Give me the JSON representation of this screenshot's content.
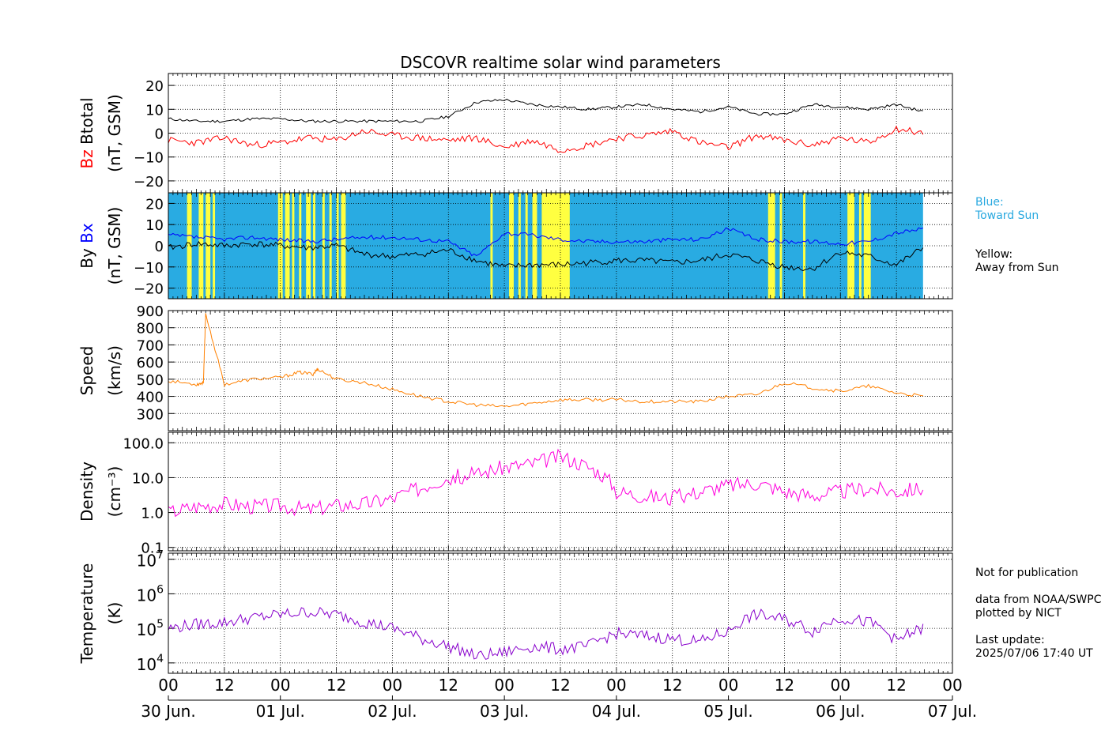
{
  "title": "DSCOVR realtime solar wind parameters",
  "colors": {
    "bz": "#ff0000",
    "btotal": "#000000",
    "bx": "#0000ff",
    "by": "#000000",
    "speed": "#ff8000",
    "density": "#ff00dd",
    "temperature": "#8800cc",
    "toward_sun_bg": "#29abe2",
    "away_sun_bg": "#ffff40"
  },
  "side_notes": {
    "blue_line1": "Blue:",
    "blue_line2": "Toward Sun",
    "yellow_line1": "Yellow:",
    "yellow_line2": "Away from Sun",
    "not_for_pub": "Not for publication",
    "data_from": "data from NOAA/SWPC",
    "plotted_by": "plotted by NICT",
    "last_update_label": "Last update:",
    "last_update_value": "2025/07/06 17:40 UT"
  },
  "chart_data": [
    {
      "type": "line",
      "panel": "magnetic field magnitude and Bz",
      "ylabel_parts": [
        "Bz",
        "Btotal"
      ],
      "ylabel_unit": "(nT, GSM)",
      "yticks": [
        "20",
        "10",
        "0",
        "−10",
        "−20"
      ],
      "ylim": [
        -25,
        25
      ],
      "grid": true,
      "x": [
        0,
        6,
        12,
        18,
        24,
        30,
        36,
        42,
        48,
        54,
        60,
        66,
        72,
        78,
        84,
        90,
        96,
        102,
        108,
        114,
        120,
        126,
        132,
        138,
        144,
        150,
        156,
        161.7
      ],
      "series": [
        {
          "name": "Btotal",
          "values": [
            6,
            5,
            5,
            6,
            6,
            5,
            5,
            5,
            5,
            5,
            7,
            13,
            14,
            12,
            11,
            10,
            11,
            12,
            10,
            9,
            11,
            8,
            8,
            12,
            11,
            10,
            12,
            9
          ]
        },
        {
          "name": "Bz",
          "values": [
            -3,
            -4,
            -2,
            -5,
            -4,
            -2,
            -3,
            1,
            -1,
            -2,
            -3,
            -2,
            -6,
            -3,
            -7,
            -5,
            -2,
            -1,
            1,
            -4,
            -6,
            -1,
            -3,
            -5,
            -2,
            -4,
            2,
            0
          ]
        }
      ]
    },
    {
      "type": "line",
      "panel": "Bx and By with IMF sector shading",
      "ylabel_parts": [
        "By",
        "Bx"
      ],
      "ylabel_unit": "(nT, GSM)",
      "yticks": [
        "20",
        "10",
        "0",
        "−10",
        "−20"
      ],
      "ylim": [
        -25,
        25
      ],
      "grid": true,
      "x": [
        0,
        6,
        12,
        18,
        24,
        30,
        36,
        42,
        48,
        54,
        60,
        66,
        72,
        78,
        84,
        90,
        96,
        102,
        108,
        114,
        120,
        126,
        132,
        138,
        144,
        150,
        156,
        161.7
      ],
      "series": [
        {
          "name": "Bx",
          "values": [
            5,
            4,
            3,
            4,
            3,
            2,
            3,
            4,
            4,
            3,
            2,
            -5,
            6,
            5,
            3,
            2,
            2,
            2,
            3,
            3,
            8,
            3,
            2,
            2,
            1,
            2,
            6,
            8
          ]
        },
        {
          "name": "By",
          "values": [
            -1,
            1,
            0,
            1,
            0,
            -1,
            0,
            -4,
            -5,
            -4,
            -2,
            -7,
            -10,
            -9,
            -9,
            -8,
            -7,
            -7,
            -8,
            -7,
            -4,
            -7,
            -10,
            -11,
            -3,
            -5,
            -9,
            -1
          ]
        }
      ],
      "sector_away_sun_ranges": [
        [
          4,
          5
        ],
        [
          6.5,
          7.5
        ],
        [
          8,
          9
        ],
        [
          9.5,
          10
        ],
        [
          23.5,
          24.5
        ],
        [
          25,
          26
        ],
        [
          26.5,
          27
        ],
        [
          28,
          28.5
        ],
        [
          29.5,
          30.5
        ],
        [
          31,
          31.5
        ],
        [
          33,
          33.5
        ],
        [
          34.5,
          35
        ],
        [
          36,
          36.5
        ],
        [
          37,
          38
        ],
        [
          69,
          69.5
        ],
        [
          73,
          74
        ],
        [
          75,
          75.5
        ],
        [
          76.5,
          77
        ],
        [
          78,
          79
        ],
        [
          80,
          86
        ],
        [
          128.5,
          130
        ],
        [
          131,
          131.5
        ],
        [
          136,
          136.5
        ],
        [
          145.5,
          147
        ],
        [
          148,
          148.5
        ],
        [
          149,
          150.5
        ]
      ]
    },
    {
      "type": "line",
      "panel": "solar wind speed",
      "ylabel": "Speed",
      "ylabel_unit": "(km/s)",
      "yticks": [
        "900",
        "800",
        "700",
        "600",
        "500",
        "400",
        "300"
      ],
      "ylim": [
        200,
        900
      ],
      "grid": true,
      "x": [
        0,
        6,
        7.5,
        8,
        12,
        18,
        24,
        28,
        31,
        32,
        36,
        42,
        48,
        54,
        60,
        66,
        72,
        78,
        84,
        90,
        96,
        102,
        108,
        114,
        120,
        126,
        132,
        138,
        144,
        150,
        156,
        161.7
      ],
      "values": [
        490,
        470,
        480,
        880,
        470,
        500,
        510,
        540,
        530,
        560,
        500,
        480,
        440,
        400,
        370,
        350,
        340,
        360,
        380,
        380,
        380,
        370,
        370,
        370,
        400,
        410,
        480,
        450,
        430,
        460,
        420,
        400
      ]
    },
    {
      "type": "line",
      "panel": "proton density",
      "ylabel": "Density",
      "ylabel_unit": "(cm⁻³)",
      "yscale": "log",
      "yticks": [
        "100.0",
        "10.0",
        "1.0",
        "0.1"
      ],
      "ylim": [
        0.08,
        200
      ],
      "grid": true,
      "x": [
        0,
        6,
        12,
        18,
        24,
        30,
        36,
        42,
        48,
        54,
        60,
        66,
        72,
        78,
        84,
        90,
        96,
        102,
        108,
        114,
        120,
        126,
        132,
        138,
        144,
        150,
        156,
        161.7
      ],
      "values": [
        1.0,
        1.5,
        1.8,
        1.5,
        1.6,
        1.2,
        1.6,
        1.8,
        2.5,
        5,
        10,
        12,
        20,
        25,
        40,
        20,
        4,
        3,
        2.5,
        4,
        6,
        7,
        4,
        3,
        4,
        5,
        4,
        5
      ]
    },
    {
      "type": "line",
      "panel": "proton temperature",
      "ylabel": "Temperature",
      "ylabel_unit": "(K)",
      "yscale": "log",
      "yticks": [
        "10^7",
        "10^6",
        "10^5",
        "10^4"
      ],
      "ylim": [
        5000,
        15000000
      ],
      "grid": true,
      "x": [
        0,
        6,
        12,
        18,
        24,
        30,
        36,
        42,
        48,
        54,
        60,
        66,
        72,
        78,
        84,
        90,
        96,
        102,
        108,
        114,
        120,
        126,
        132,
        138,
        144,
        150,
        156,
        161.7
      ],
      "values": [
        100000,
        130000,
        150000,
        200000,
        250000,
        300000,
        250000,
        150000,
        100000,
        50000,
        30000,
        15000,
        20000,
        30000,
        25000,
        30000,
        70000,
        60000,
        50000,
        40000,
        80000,
        250000,
        180000,
        80000,
        200000,
        150000,
        40000,
        100000
      ]
    }
  ],
  "x_axis": {
    "hour_ticks": [
      "00",
      "12",
      "00",
      "12",
      "00",
      "12",
      "00",
      "12",
      "00",
      "12",
      "00",
      "12",
      "00",
      "12",
      "00"
    ],
    "date_labels": [
      "30 Jun.",
      "01 Jul.",
      "02 Jul.",
      "03 Jul.",
      "04 Jul.",
      "05 Jul.",
      "06 Jul.",
      "07 Jul."
    ],
    "xlim_hours": [
      0,
      168
    ]
  }
}
